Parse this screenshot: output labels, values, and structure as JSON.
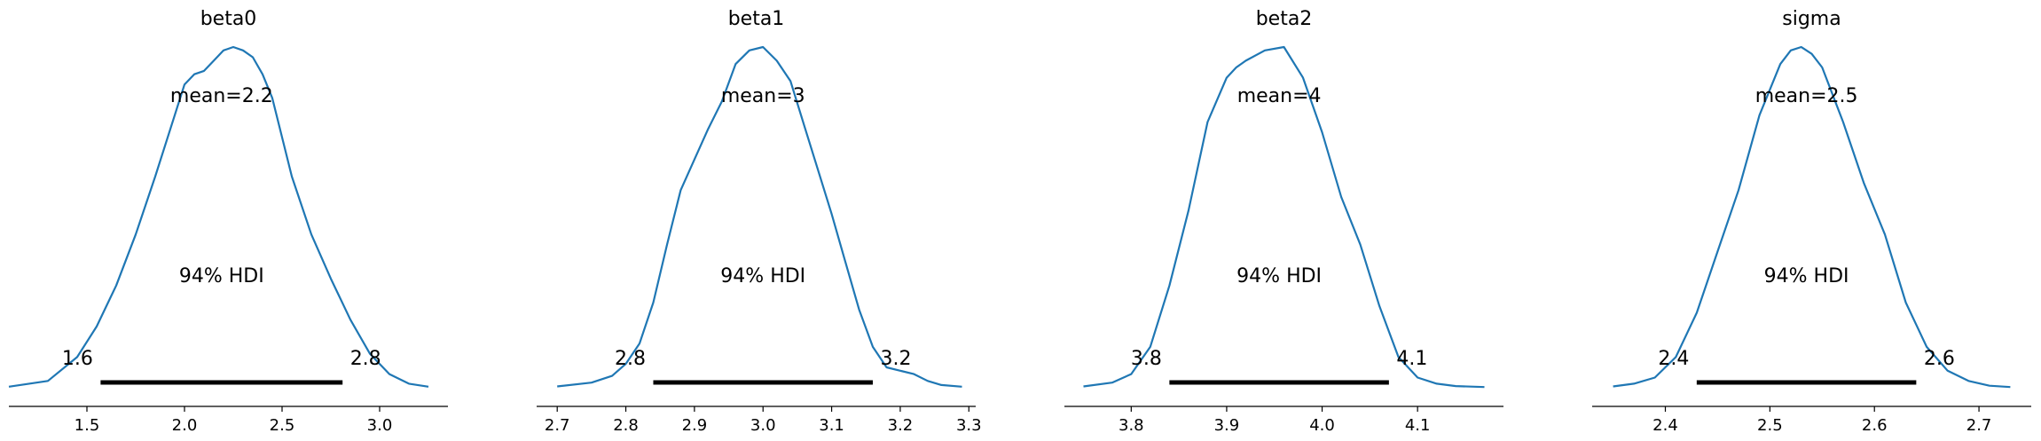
{
  "chart_data": [
    {
      "type": "line",
      "title": "beta0",
      "mean_label": "mean=2.2",
      "hdi_label": "94% HDI",
      "hdi": [
        1.57,
        2.81
      ],
      "hdi_labels": [
        "1.6",
        "2.8"
      ],
      "xlim": [
        1.1,
        3.35
      ],
      "ticks": [
        1.5,
        2.0,
        2.5,
        3.0
      ],
      "tick_labels": [
        "1.5",
        "2.0",
        "2.5",
        "3.0"
      ],
      "x": [
        1.1,
        1.3,
        1.45,
        1.55,
        1.65,
        1.75,
        1.85,
        1.95,
        2.0,
        2.05,
        2.1,
        2.15,
        2.2,
        2.25,
        2.3,
        2.35,
        2.4,
        2.45,
        2.55,
        2.65,
        2.75,
        2.85,
        2.95,
        3.05,
        3.15,
        3.25
      ],
      "y": [
        0.003,
        0.02,
        0.09,
        0.18,
        0.3,
        0.45,
        0.62,
        0.8,
        0.89,
        0.92,
        0.93,
        0.96,
        0.99,
        1.0,
        0.99,
        0.97,
        0.92,
        0.85,
        0.62,
        0.45,
        0.32,
        0.2,
        0.1,
        0.04,
        0.012,
        0.003
      ]
    },
    {
      "type": "line",
      "title": "beta1",
      "mean_label": "mean=3",
      "hdi_label": "94% HDI",
      "hdi": [
        2.84,
        3.16
      ],
      "hdi_labels": [
        "2.8",
        "3.2"
      ],
      "xlim": [
        2.67,
        3.31
      ],
      "ticks": [
        2.7,
        2.8,
        2.9,
        3.0,
        3.1,
        3.2,
        3.3
      ],
      "tick_labels": [
        "2.7",
        "2.8",
        "2.9",
        "3.0",
        "3.1",
        "3.2",
        "3.3"
      ],
      "x": [
        2.7,
        2.75,
        2.78,
        2.8,
        2.82,
        2.84,
        2.86,
        2.88,
        2.9,
        2.92,
        2.94,
        2.96,
        2.98,
        3.0,
        3.02,
        3.04,
        3.06,
        3.08,
        3.1,
        3.12,
        3.14,
        3.16,
        3.18,
        3.2,
        3.22,
        3.24,
        3.26,
        3.29
      ],
      "y": [
        0.004,
        0.015,
        0.035,
        0.07,
        0.13,
        0.25,
        0.42,
        0.58,
        0.67,
        0.76,
        0.84,
        0.95,
        0.99,
        1.0,
        0.96,
        0.9,
        0.77,
        0.64,
        0.51,
        0.37,
        0.23,
        0.12,
        0.06,
        0.05,
        0.04,
        0.02,
        0.008,
        0.003
      ]
    },
    {
      "type": "line",
      "title": "beta2",
      "mean_label": "mean=4",
      "hdi_label": "94% HDI",
      "hdi": [
        3.84,
        4.07
      ],
      "hdi_labels": [
        "3.8",
        "4.1"
      ],
      "xlim": [
        3.73,
        4.19
      ],
      "ticks": [
        3.8,
        3.9,
        4.0,
        4.1
      ],
      "tick_labels": [
        "3.8",
        "3.9",
        "4.0",
        "4.1"
      ],
      "x": [
        3.75,
        3.78,
        3.8,
        3.82,
        3.84,
        3.86,
        3.88,
        3.9,
        3.91,
        3.92,
        3.94,
        3.96,
        3.98,
        4.0,
        4.02,
        4.04,
        4.06,
        4.08,
        4.1,
        4.12,
        4.14,
        4.17
      ],
      "y": [
        0.004,
        0.015,
        0.04,
        0.12,
        0.3,
        0.52,
        0.78,
        0.91,
        0.94,
        0.96,
        0.99,
        1.0,
        0.91,
        0.75,
        0.56,
        0.42,
        0.24,
        0.09,
        0.03,
        0.012,
        0.005,
        0.002
      ]
    },
    {
      "type": "line",
      "title": "sigma",
      "mean_label": "mean=2.5",
      "hdi_label": "94% HDI",
      "hdi": [
        2.43,
        2.64
      ],
      "hdi_labels": [
        "2.4",
        "2.6"
      ],
      "xlim": [
        2.33,
        2.75
      ],
      "ticks": [
        2.4,
        2.5,
        2.6,
        2.7
      ],
      "tick_labels": [
        "2.4",
        "2.5",
        "2.6",
        "2.7"
      ],
      "x": [
        2.35,
        2.37,
        2.39,
        2.41,
        2.43,
        2.45,
        2.47,
        2.49,
        2.51,
        2.52,
        2.53,
        2.54,
        2.55,
        2.57,
        2.59,
        2.61,
        2.63,
        2.65,
        2.67,
        2.69,
        2.71,
        2.73
      ],
      "y": [
        0.004,
        0.012,
        0.03,
        0.09,
        0.22,
        0.4,
        0.58,
        0.8,
        0.95,
        0.99,
        1.0,
        0.98,
        0.94,
        0.78,
        0.6,
        0.45,
        0.25,
        0.12,
        0.05,
        0.02,
        0.006,
        0.002
      ]
    }
  ]
}
